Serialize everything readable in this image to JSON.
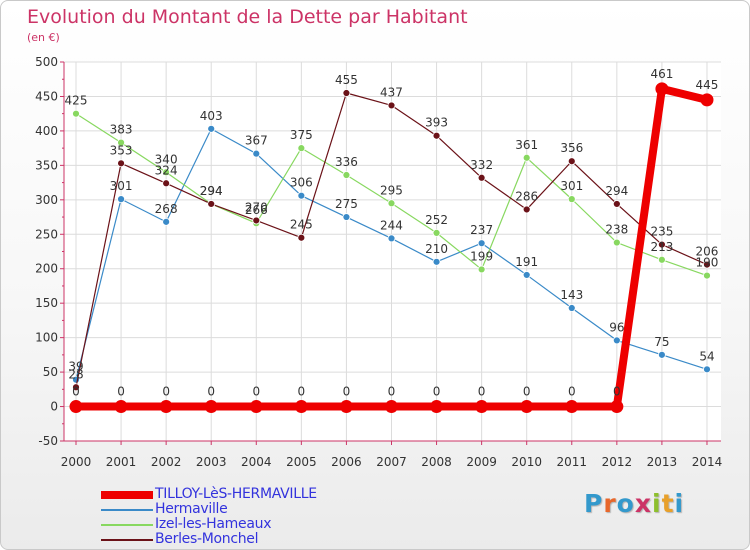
{
  "title": "Evolution du Montant de la Dette par Habitant",
  "unit": "(en €)",
  "logo": {
    "text": "Proxiti",
    "letter_colors": [
      "#3399cc",
      "#e8672a",
      "#3399cc",
      "#cc3366",
      "#8dbf2d",
      "#e8a02a",
      "#3399cc"
    ]
  },
  "chart_data": {
    "type": "line",
    "title": "Evolution du Montant de la Dette par Habitant",
    "ylabel": "(en €)",
    "x": [
      "2000",
      "2001",
      "2002",
      "2003",
      "2004",
      "2005",
      "2006",
      "2007",
      "2008",
      "2009",
      "2010",
      "2011",
      "2012",
      "2013",
      "2014"
    ],
    "ylim": [
      -50,
      500
    ],
    "yticks": [
      -50,
      0,
      50,
      100,
      150,
      200,
      250,
      300,
      350,
      400,
      450,
      500
    ],
    "ytick_labels": [
      "-50",
      "0",
      "50",
      "100",
      "150",
      "200",
      "250",
      "300",
      "350",
      "400",
      "450",
      "500"
    ],
    "grid": true,
    "legend_position": "bottom-left",
    "series": [
      {
        "name": "TILLOY-LèS-HERMAVILLE",
        "color": "#ee0000",
        "highlight": true,
        "values": [
          0,
          0,
          0,
          0,
          0,
          0,
          0,
          0,
          0,
          0,
          0,
          0,
          0,
          461,
          445
        ],
        "labels": [
          "0",
          "0",
          "0",
          "0",
          "0",
          "0",
          "0",
          "0",
          "0",
          "0",
          "0",
          "0",
          "0",
          "461",
          "445"
        ]
      },
      {
        "name": "Hermaville",
        "color": "#3a8ac8",
        "values": [
          39,
          301,
          268,
          403,
          367,
          306,
          275,
          244,
          210,
          237,
          191,
          143,
          96,
          75,
          54
        ],
        "labels": [
          "39",
          "301",
          "268",
          "403",
          "367",
          "306",
          "275",
          "244",
          "210",
          "237",
          "191",
          "143",
          "96",
          "75",
          "54"
        ]
      },
      {
        "name": "Izel-les-Hameaux",
        "color": "#88d860",
        "values": [
          425,
          383,
          340,
          294,
          266,
          375,
          336,
          295,
          252,
          199,
          361,
          301,
          238,
          213,
          190
        ],
        "labels": [
          "425",
          "383",
          "340",
          "294",
          "266",
          "375",
          "336",
          "295",
          "252",
          "199",
          "361",
          "301",
          "238",
          "213",
          "190"
        ]
      },
      {
        "name": "Berles-Monchel",
        "color": "#6b1218",
        "values": [
          28,
          353,
          324,
          294,
          270,
          245,
          455,
          437,
          393,
          332,
          286,
          356,
          294,
          235,
          206
        ],
        "labels": [
          "28",
          "353",
          "324",
          "294",
          "270",
          "245",
          "455",
          "437",
          "393",
          "332",
          "286",
          "356",
          "294",
          "235",
          "206"
        ]
      }
    ]
  }
}
